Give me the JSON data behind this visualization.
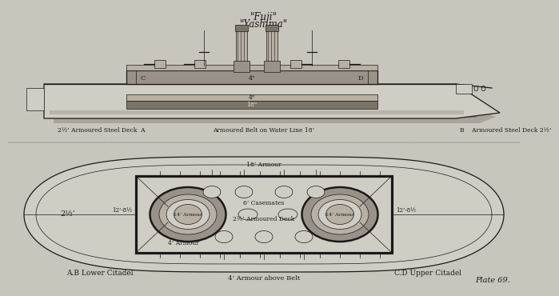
{
  "title_line1": "\"Fuji\"",
  "title_line2": "\"Yashima\"",
  "plate_text": "Plate 69.",
  "bg_color": "#c8c5bc",
  "line_color": "#1a1a1a",
  "fill_dark": "#7a7468",
  "fill_mid": "#9a9288",
  "fill_light": "#b8b0a4",
  "fill_hull_top": "#d0cdc4",
  "fill_water": "#a8a49a",
  "fill_white": "#e8e5dc",
  "label_side_left": "2½’ Armoured Steel Deck  A",
  "label_side_center": "Armoured Belt on Water Line 18’",
  "label_side_right": "B    Armoured Steel Deck 2½’",
  "label_plan_topleft": "2½’",
  "label_18armour": "18’ Armour",
  "label_casemates": "6’ Casemates",
  "label_14armour_l": "14’ Armour",
  "label_14armour_r": "14’ Armour",
  "label_armoured_deck": "2½’ Armoured Deck",
  "label_4armour": "4’ Armour",
  "label_lower_citadel": "A.B Lower Citadel",
  "label_upper_citadel": "C.D Upper Citadel",
  "label_belt": "4’ Armour above Belt",
  "label_ab": "12’-8½",
  "label_cd": "12’-8½",
  "label_c": "C",
  "label_d": "D",
  "label_oo": "O O",
  "label_4in_upper": "4\"",
  "label_18in": "18\"",
  "label_4in_lower": "4\""
}
